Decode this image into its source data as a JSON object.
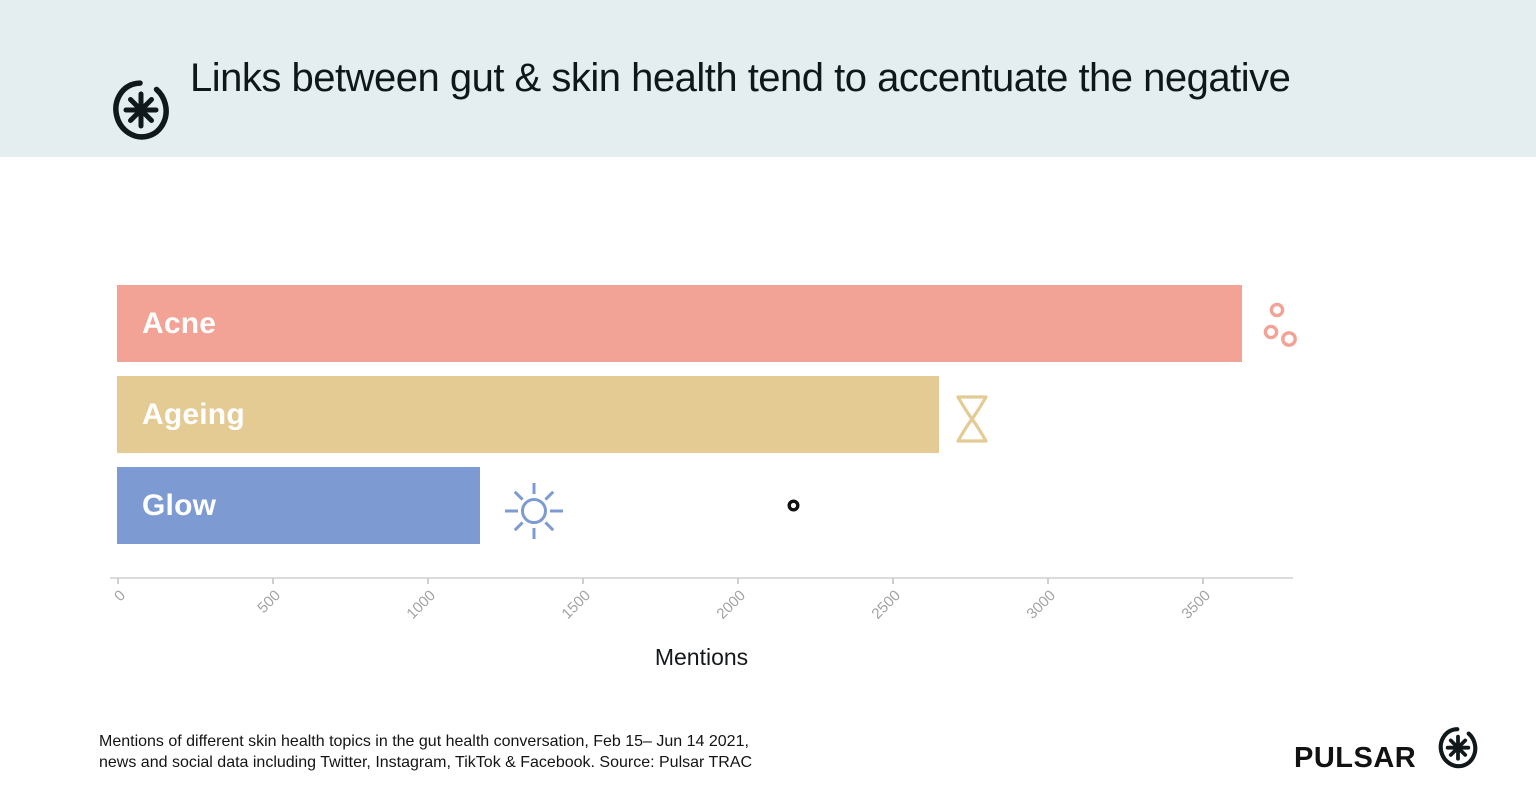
{
  "header": {
    "title": "Links between gut & skin health tend to accentuate the negative"
  },
  "chart_data": {
    "type": "bar",
    "orientation": "horizontal",
    "categories": [
      "Acne",
      "Ageing",
      "Glow"
    ],
    "values": [
      3630,
      2650,
      1170
    ],
    "bar_colors": [
      "#F3A296",
      "#E4CB94",
      "#7D9BD2"
    ],
    "icons": [
      "bubbles-icon",
      "hourglass-icon",
      "sun-icon"
    ],
    "extra_marker": "small-black-ring",
    "title": "Links between gut & skin health tend to accentuate the negative",
    "xlabel": "Mentions",
    "ylabel": "",
    "xticks": [
      0,
      500,
      1000,
      1500,
      2000,
      2500,
      3000,
      3500
    ],
    "xlim": [
      0,
      3790
    ],
    "grid": false,
    "legend": false
  },
  "footnote": {
    "line1": "Mentions of different skin health topics in the gut health conversation, Feb 15– Jun 14 2021,",
    "line2": "news and social data including Twitter, Instagram, TikTok & Facebook. Source: Pulsar TRAC"
  },
  "brand": {
    "wordmark": "PULSAR"
  },
  "colors": {
    "header_bg": "#E4EEF0",
    "title_text": "#0F171A",
    "bar_label_text": "#FFFFFF",
    "axis_line": "#DBDBDB",
    "tick_label": "#A3A3A3",
    "footnote_text": "#141414",
    "dot_marker": "#111111",
    "logo_ink": "#10181B"
  }
}
